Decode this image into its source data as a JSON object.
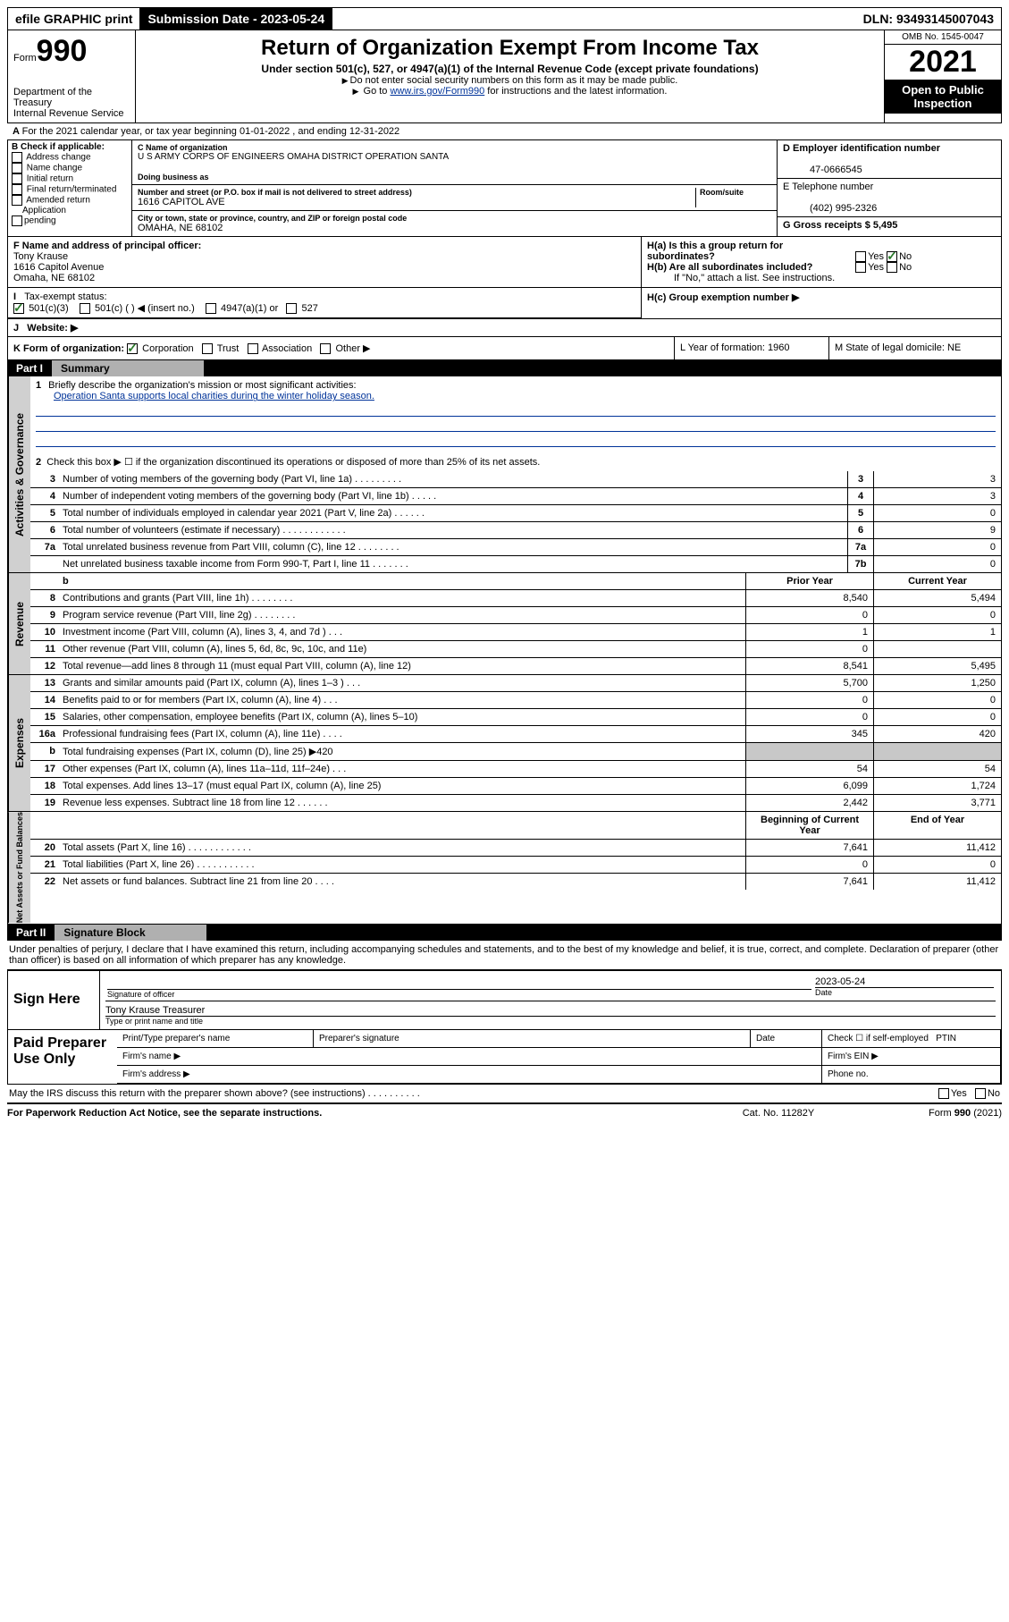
{
  "topbar": {
    "efile": "efile GRAPHIC print",
    "submission": "Submission Date - 2023-05-24",
    "dln": "DLN: 93493145007043"
  },
  "header": {
    "form": "Form",
    "form_no": "990",
    "dept": "Department of the Treasury\nInternal Revenue Service",
    "title": "Return of Organization Exempt From Income Tax",
    "sub": "Under section 501(c), 527, or 4947(a)(1) of the Internal Revenue Code (except private foundations)",
    "note1": "Do not enter social security numbers on this form as it may be made public.",
    "note2_pre": "Go to ",
    "note2_link": "www.irs.gov/Form990",
    "note2_post": " for instructions and the latest information.",
    "omb": "OMB No. 1545-0047",
    "year": "2021",
    "public": "Open to Public Inspection"
  },
  "line_a": "For the 2021 calendar year, or tax year beginning 01-01-2022    , and ending 12-31-2022",
  "col_b": {
    "header": "B Check if applicable:",
    "items": [
      "Address change",
      "Name change",
      "Initial return",
      "Final return/terminated",
      "Amended return",
      "Application pending"
    ]
  },
  "col_c": {
    "name_label": "C Name of organization",
    "name": "U S ARMY CORPS OF ENGINEERS OMAHA DISTRICT OPERATION SANTA",
    "dba_label": "Doing business as",
    "dba": "",
    "street_label": "Number and street (or P.O. box if mail is not delivered to street address)",
    "room_label": "Room/suite",
    "street": "1616 CAPITOL AVE",
    "city_label": "City or town, state or province, country, and ZIP or foreign postal code",
    "city": "OMAHA, NE  68102"
  },
  "col_d": {
    "d_label": "D Employer identification number",
    "d_val": "47-0666545",
    "e_label": "E Telephone number",
    "e_val": "(402) 995-2326",
    "g_label": "G Gross receipts $ 5,495"
  },
  "f": {
    "label": "F  Name and address of principal officer:",
    "name": "Tony Krause",
    "addr1": "1616 Capitol Avenue",
    "addr2": "Omaha, NE  68102"
  },
  "h": {
    "a": "H(a)  Is this a group return for subordinates?",
    "b": "H(b)  Are all subordinates included?",
    "b_note": "If \"No,\" attach a list. See instructions.",
    "c": "H(c)  Group exemption number ▶"
  },
  "i": {
    "label": "Tax-exempt status:",
    "opts": [
      "501(c)(3)",
      "501(c) (   ) ◀ (insert no.)",
      "4947(a)(1) or",
      "527"
    ]
  },
  "j": "Website: ▶",
  "k": {
    "label": "K Form of organization:",
    "opts": [
      "Corporation",
      "Trust",
      "Association",
      "Other ▶"
    ],
    "l": "L Year of formation: 1960",
    "m": "M State of legal domicile: NE"
  },
  "part1": {
    "num": "Part I",
    "title": "Summary"
  },
  "mission": {
    "num": "1",
    "label": "Briefly describe the organization's mission or most significant activities:",
    "text": "Operation Santa supports local charities during the winter holiday season."
  },
  "line2": "Check this box ▶ ☐  if the organization discontinued its operations or disposed of more than 25% of its net assets.",
  "gov_rows": [
    {
      "num": "3",
      "desc": "Number of voting members of the governing body (Part VI, line 1a)  .    .    .    .    .    .    .    .    .",
      "box": "3",
      "val": "3"
    },
    {
      "num": "4",
      "desc": "Number of independent voting members of the governing body (Part VI, line 1b)  .    .    .    .    .",
      "box": "4",
      "val": "3"
    },
    {
      "num": "5",
      "desc": "Total number of individuals employed in calendar year 2021 (Part V, line 2a)  .    .    .    .    .    .",
      "box": "5",
      "val": "0"
    },
    {
      "num": "6",
      "desc": "Total number of volunteers (estimate if necessary)  .    .    .    .    .    .    .    .    .    .    .    .",
      "box": "6",
      "val": "9"
    },
    {
      "num": "7a",
      "desc": "Total unrelated business revenue from Part VIII, column (C), line 12  .    .    .    .    .    .    .    .",
      "box": "7a",
      "val": "0"
    },
    {
      "num": "",
      "desc": "Net unrelated business taxable income from Form 990-T, Part I, line 11  .    .    .    .    .    .    .",
      "box": "7b",
      "val": "0"
    }
  ],
  "col_headers": {
    "prior": "Prior Year",
    "current": "Current Year"
  },
  "rev_rows": [
    {
      "num": "8",
      "desc": "Contributions and grants (Part VIII, line 1h)  .    .    .    .    .    .    .    .",
      "p": "8,540",
      "c": "5,494"
    },
    {
      "num": "9",
      "desc": "Program service revenue (Part VIII, line 2g)  .    .    .    .    .    .    .    .",
      "p": "0",
      "c": "0"
    },
    {
      "num": "10",
      "desc": "Investment income (Part VIII, column (A), lines 3, 4, and 7d )  .    .    .",
      "p": "1",
      "c": "1"
    },
    {
      "num": "11",
      "desc": "Other revenue (Part VIII, column (A), lines 5, 6d, 8c, 9c, 10c, and 11e)",
      "p": "0",
      "c": ""
    },
    {
      "num": "12",
      "desc": "Total revenue—add lines 8 through 11 (must equal Part VIII, column (A), line 12)",
      "p": "8,541",
      "c": "5,495"
    }
  ],
  "exp_rows": [
    {
      "num": "13",
      "desc": "Grants and similar amounts paid (Part IX, column (A), lines 1–3 )  .    .    .",
      "p": "5,700",
      "c": "1,250"
    },
    {
      "num": "14",
      "desc": "Benefits paid to or for members (Part IX, column (A), line 4)  .    .    .",
      "p": "0",
      "c": "0"
    },
    {
      "num": "15",
      "desc": "Salaries, other compensation, employee benefits (Part IX, column (A), lines 5–10)",
      "p": "0",
      "c": "0"
    },
    {
      "num": "16a",
      "desc": "Professional fundraising fees (Part IX, column (A), line 11e)  .    .    .    .",
      "p": "345",
      "c": "420"
    },
    {
      "num": "b",
      "desc": "Total fundraising expenses (Part IX, column (D), line 25) ▶420",
      "p": "shade",
      "c": "shade"
    },
    {
      "num": "17",
      "desc": "Other expenses (Part IX, column (A), lines 11a–11d, 11f–24e)  .    .    .",
      "p": "54",
      "c": "54"
    },
    {
      "num": "18",
      "desc": "Total expenses. Add lines 13–17 (must equal Part IX, column (A), line 25)",
      "p": "6,099",
      "c": "1,724"
    },
    {
      "num": "19",
      "desc": "Revenue less expenses. Subtract line 18 from line 12  .    .    .    .    .    .",
      "p": "2,442",
      "c": "3,771"
    }
  ],
  "net_headers": {
    "begin": "Beginning of Current Year",
    "end": "End of Year"
  },
  "net_rows": [
    {
      "num": "20",
      "desc": "Total assets (Part X, line 16)  .    .    .    .    .    .    .    .    .    .    .    .",
      "p": "7,641",
      "c": "11,412"
    },
    {
      "num": "21",
      "desc": "Total liabilities (Part X, line 26)  .    .    .    .    .    .    .    .    .    .    .",
      "p": "0",
      "c": "0"
    },
    {
      "num": "22",
      "desc": "Net assets or fund balances. Subtract line 21 from line 20  .    .    .    .",
      "p": "7,641",
      "c": "11,412"
    }
  ],
  "part2": {
    "num": "Part II",
    "title": "Signature Block"
  },
  "penalties": "Under penalties of perjury, I declare that I have examined this return, including accompanying schedules and statements, and to the best of my knowledge and belief, it is true, correct, and complete. Declaration of preparer (other than officer) is based on all information of which preparer has any knowledge.",
  "sign": {
    "label": "Sign Here",
    "sig_label": "Signature of officer",
    "date": "2023-05-24",
    "date_label": "Date",
    "name": "Tony Krause  Treasurer",
    "name_label": "Type or print name and title"
  },
  "paid": {
    "label": "Paid Preparer Use Only",
    "h1": "Print/Type preparer's name",
    "h2": "Preparer's signature",
    "h3": "Date",
    "h4_pre": "Check ☐ if self-employed",
    "h4_ptin": "PTIN",
    "firm_name": "Firm's name   ▶",
    "firm_ein": "Firm's EIN ▶",
    "firm_addr": "Firm's address ▶",
    "phone": "Phone no."
  },
  "discuss": "May the IRS discuss this return with the preparer shown above? (see instructions)  .    .    .    .    .    .    .    .    .    .",
  "footer": {
    "l": "For Paperwork Reduction Act Notice, see the separate instructions.",
    "m": "Cat. No. 11282Y",
    "r": "Form 990 (2021)"
  },
  "vtabs": {
    "gov": "Activities & Governance",
    "rev": "Revenue",
    "exp": "Expenses",
    "net": "Net Assets or Fund Balances"
  }
}
